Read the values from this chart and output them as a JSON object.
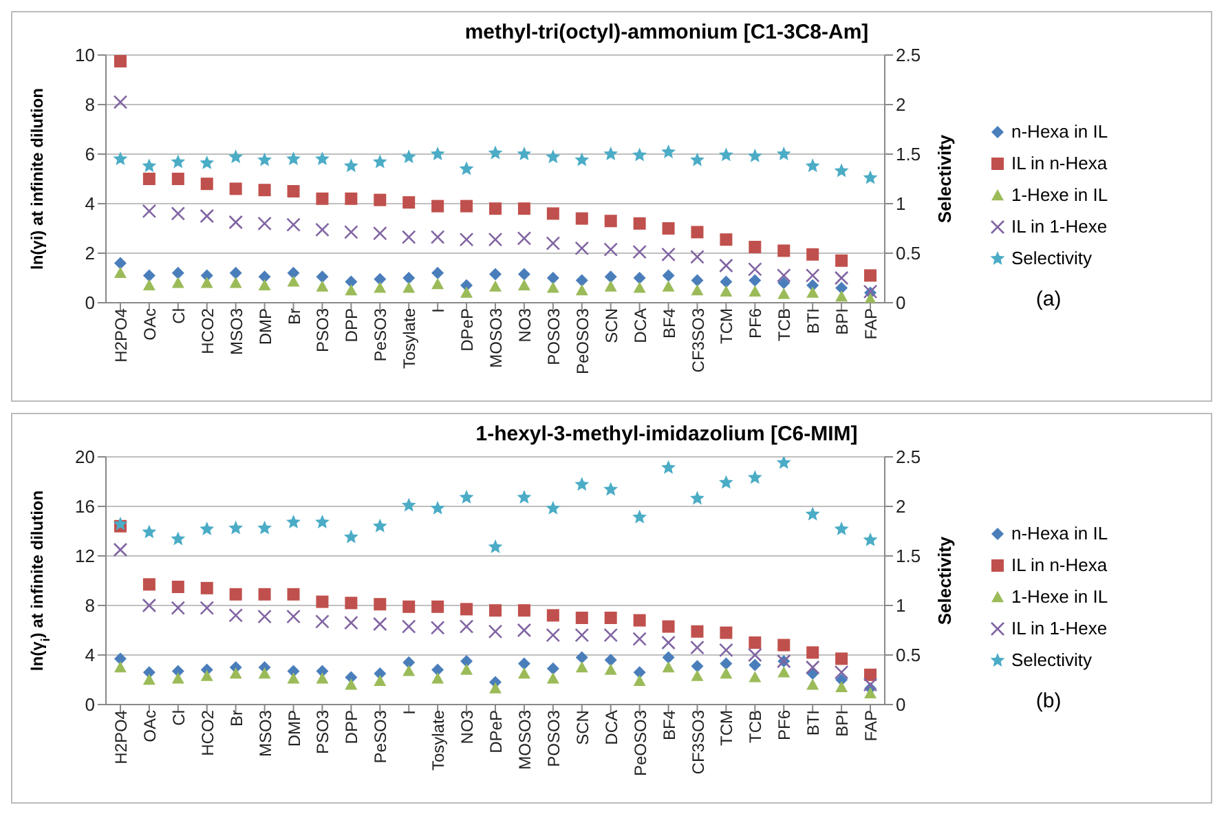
{
  "chart_data": [
    {
      "type": "scatter",
      "title": "methyl-tri(octyl)-ammonium [C1-3C8-Am]",
      "ylabel": "ln(γi) at infinite dilution",
      "y2label": "Selectivity",
      "annotations": [
        "(a)"
      ],
      "grid": "y",
      "legend": "right",
      "categories": [
        "H2PO4",
        "OAc",
        "Cl",
        "HCO2",
        "MSO3",
        "DMP",
        "Br",
        "PSO3",
        "DPP",
        "PeSO3",
        "Tosylate",
        "I",
        "DPeP",
        "MOSO3",
        "NO3",
        "POSO3",
        "PeOSO3",
        "SCN",
        "DCA",
        "BF4",
        "CF3SO3",
        "TCM",
        "PF6",
        "TCB",
        "BTI",
        "BPI",
        "FAP"
      ],
      "ylim": [
        0,
        10
      ],
      "yticks": [
        0,
        2,
        4,
        6,
        8,
        10
      ],
      "y2lim": [
        0,
        2.5
      ],
      "y2ticks": [
        0,
        0.5,
        1,
        1.5,
        2,
        2.5
      ],
      "series": [
        {
          "name": "n-Hexa in IL",
          "color": "#4a7ebb",
          "marker": "diamond",
          "values": [
            1.6,
            1.1,
            1.2,
            1.1,
            1.2,
            1.05,
            1.2,
            1.05,
            0.85,
            0.95,
            1.0,
            1.2,
            0.7,
            1.15,
            1.15,
            1.0,
            0.9,
            1.05,
            1.0,
            1.1,
            0.9,
            0.85,
            0.9,
            0.8,
            0.7,
            0.6,
            0.4
          ]
        },
        {
          "name": "IL in n-Hexa",
          "color": "#c0504d",
          "marker": "square",
          "values": [
            9.75,
            5.0,
            5.0,
            4.8,
            4.6,
            4.55,
            4.5,
            4.2,
            4.2,
            4.15,
            4.05,
            3.9,
            3.9,
            3.8,
            3.8,
            3.6,
            3.4,
            3.3,
            3.2,
            3.0,
            2.85,
            2.55,
            2.25,
            2.1,
            1.95,
            1.7,
            1.1
          ]
        },
        {
          "name": "1-Hexe in IL",
          "color": "#9bbb59",
          "marker": "triangle",
          "values": [
            1.2,
            0.7,
            0.8,
            0.8,
            0.8,
            0.7,
            0.85,
            0.65,
            0.5,
            0.6,
            0.6,
            0.75,
            0.4,
            0.65,
            0.7,
            0.6,
            0.5,
            0.65,
            0.6,
            0.65,
            0.5,
            0.45,
            0.45,
            0.35,
            0.4,
            0.25,
            0.15
          ]
        },
        {
          "name": "IL in 1-Hexe",
          "color": "#8064a2",
          "marker": "cross",
          "values": [
            8.1,
            3.7,
            3.6,
            3.5,
            3.25,
            3.2,
            3.15,
            2.95,
            2.85,
            2.8,
            2.65,
            2.65,
            2.55,
            2.55,
            2.6,
            2.4,
            2.2,
            2.15,
            2.05,
            1.95,
            1.85,
            1.5,
            1.35,
            1.1,
            1.1,
            1.0,
            0.45
          ]
        },
        {
          "name": "Selectivity",
          "color": "#4bacc6",
          "marker": "star",
          "axis": "y2",
          "values": [
            1.45,
            1.38,
            1.42,
            1.41,
            1.47,
            1.44,
            1.45,
            1.45,
            1.38,
            1.42,
            1.47,
            1.5,
            1.35,
            1.51,
            1.5,
            1.47,
            1.44,
            1.5,
            1.49,
            1.52,
            1.44,
            1.49,
            1.48,
            1.5,
            1.38,
            1.33,
            1.26
          ]
        }
      ]
    },
    {
      "type": "scatter",
      "title": "1-hexyl-3-methyl-imidazolium [C6-MIM]",
      "ylabel": "ln(γ$_{i}$) at infinite dilution",
      "y2label": "Selectivity",
      "annotations": [
        "(b)"
      ],
      "grid": "y",
      "legend": "right",
      "categories": [
        "H2PO4",
        "OAc",
        "Cl",
        "HCO2",
        "Br",
        "MSO3",
        "DMP",
        "PSO3",
        "DPP",
        "PeSO3",
        "I",
        "Tosylate",
        "NO3",
        "DPeP",
        "MOSO3",
        "POSO3",
        "SCN",
        "DCA",
        "PeOSO3",
        "BF4",
        "CF3SO3",
        "TCM",
        "TCB",
        "PF6",
        "BTI",
        "BPI",
        "FAP"
      ],
      "ylim": [
        0,
        20
      ],
      "yticks": [
        0,
        4,
        8,
        12,
        16,
        20
      ],
      "y2lim": [
        0,
        2.5
      ],
      "y2ticks": [
        0,
        0.5,
        1,
        1.5,
        2,
        2.5
      ],
      "series": [
        {
          "name": "n-Hexa in IL",
          "color": "#4a7ebb",
          "marker": "diamond",
          "values": [
            3.7,
            2.6,
            2.7,
            2.8,
            3.0,
            3.0,
            2.7,
            2.7,
            2.2,
            2.5,
            3.4,
            2.8,
            3.5,
            1.8,
            3.3,
            2.9,
            3.8,
            3.6,
            2.6,
            3.8,
            3.1,
            3.3,
            3.2,
            3.5,
            2.5,
            2.0,
            1.3
          ]
        },
        {
          "name": "IL in n-Hexa",
          "color": "#c0504d",
          "marker": "square",
          "values": [
            14.4,
            9.7,
            9.5,
            9.4,
            8.9,
            8.9,
            8.9,
            8.3,
            8.2,
            8.1,
            7.9,
            7.9,
            7.7,
            7.6,
            7.6,
            7.2,
            7.0,
            7.0,
            6.8,
            6.3,
            5.9,
            5.8,
            5.0,
            4.8,
            4.2,
            3.7,
            2.4
          ]
        },
        {
          "name": "1-Hexe in IL",
          "color": "#9bbb59",
          "marker": "triangle",
          "values": [
            3.0,
            2.0,
            2.1,
            2.3,
            2.5,
            2.5,
            2.1,
            2.1,
            1.6,
            1.9,
            2.7,
            2.1,
            2.8,
            1.3,
            2.5,
            2.1,
            3.0,
            2.8,
            1.9,
            3.0,
            2.3,
            2.5,
            2.2,
            2.6,
            1.6,
            1.4,
            0.9
          ]
        },
        {
          "name": "IL in 1-Hexe",
          "color": "#8064a2",
          "marker": "cross",
          "values": [
            12.5,
            8.0,
            7.8,
            7.8,
            7.2,
            7.1,
            7.1,
            6.7,
            6.6,
            6.5,
            6.3,
            6.2,
            6.3,
            5.9,
            6.0,
            5.6,
            5.6,
            5.6,
            5.3,
            5.0,
            4.6,
            4.4,
            4.0,
            3.5,
            3.0,
            2.6,
            1.6
          ]
        },
        {
          "name": "Selectivity",
          "color": "#4bacc6",
          "marker": "star",
          "axis": "y2",
          "values": [
            1.82,
            1.74,
            1.67,
            1.77,
            1.78,
            1.78,
            1.84,
            1.84,
            1.69,
            1.8,
            2.01,
            1.98,
            2.09,
            1.59,
            2.09,
            1.98,
            2.22,
            2.17,
            1.89,
            2.39,
            2.08,
            2.24,
            2.29,
            2.44,
            1.92,
            1.77,
            1.66
          ]
        }
      ]
    }
  ]
}
